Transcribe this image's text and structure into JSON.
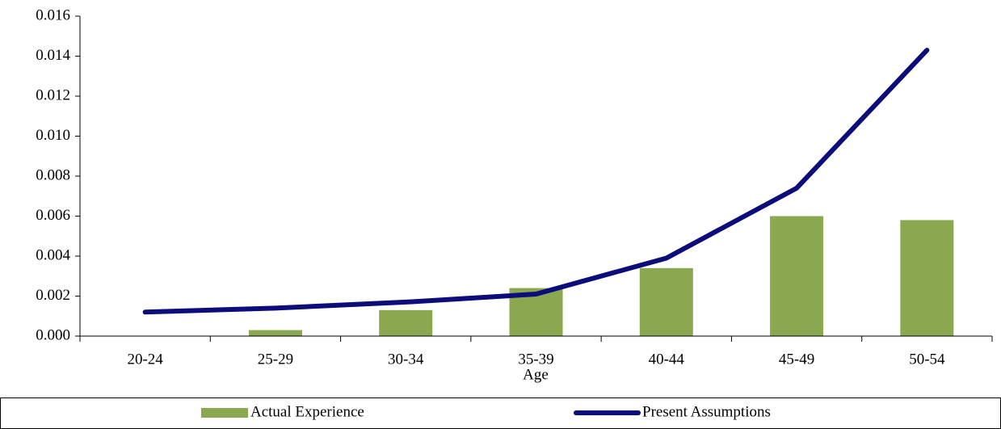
{
  "chart_data": {
    "type": "combo",
    "x_label": "Age",
    "categories": [
      "20-24",
      "25-29",
      "30-34",
      "35-39",
      "40-44",
      "45-49",
      "50-54"
    ],
    "series": [
      {
        "name": "Actual Experience",
        "type": "bar",
        "color": "#8aa84f",
        "values": [
          0,
          0.0003,
          0.0013,
          0.0024,
          0.0034,
          0.006,
          0.0058
        ]
      },
      {
        "name": "Present Assumptions",
        "type": "line",
        "color": "#0c0c7a",
        "values": [
          0.0012,
          0.0014,
          0.0017,
          0.0021,
          0.0039,
          0.0074,
          0.0143
        ]
      }
    ],
    "ylim": [
      0,
      0.016
    ],
    "yticks": [
      {
        "value": 0,
        "label": "0.000"
      },
      0.002,
      0.004,
      0.006,
      0.008,
      {
        "value": 0.01,
        "label": "0.010"
      },
      0.012,
      0.014,
      0.016
    ],
    "grid": false,
    "legend": "bottom"
  }
}
